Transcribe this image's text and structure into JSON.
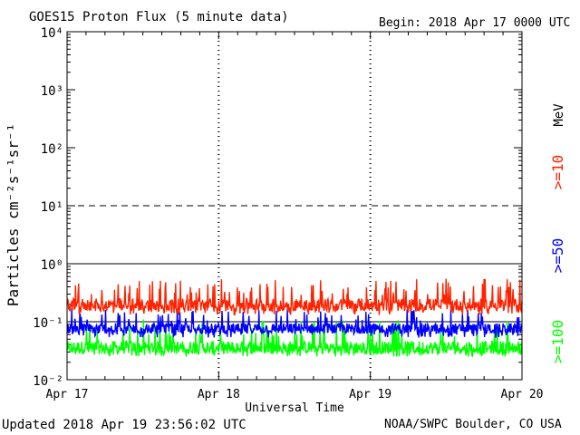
{
  "header": {
    "title": "GOES15 Proton Flux (5 minute data)",
    "begin": "Begin: 2018 Apr 17 0000 UTC"
  },
  "footer": {
    "updated": "Updated 2018 Apr 19 23:56:02 UTC",
    "source": "NOAA/SWPC Boulder, CO USA"
  },
  "chart_data": {
    "type": "line",
    "title": "GOES15 Proton Flux (5 minute data)",
    "xlabel": "Universal Time",
    "ylabel": "Particles cm⁻²s⁻¹sr⁻¹",
    "y_scale": "log",
    "ylim": [
      0.01,
      10000
    ],
    "y_ticks": [
      {
        "value": 0.01,
        "label": "10⁻²"
      },
      {
        "value": 0.1,
        "label": "10⁻¹"
      },
      {
        "value": 1,
        "label": "10⁰"
      },
      {
        "value": 10,
        "label": "10¹"
      },
      {
        "value": 100,
        "label": "10²"
      },
      {
        "value": 1000,
        "label": "10³"
      },
      {
        "value": 10000,
        "label": "10⁴"
      }
    ],
    "x_ticks": [
      "Apr 17",
      "Apr 18",
      "Apr 19",
      "Apr 20"
    ],
    "xlim": [
      "2018-04-17",
      "2018-04-20"
    ],
    "threshold_lines": [
      {
        "value": 10,
        "style": "dashed"
      },
      {
        "value": 1,
        "style": "solid"
      },
      {
        "value": 0.1,
        "style": "solid"
      }
    ],
    "energy_unit": "MeV",
    "series": [
      {
        "name": ">=10",
        "color": "#ff2200",
        "min": 0.13,
        "max": 0.55,
        "typical": 0.19
      },
      {
        "name": ">=50",
        "color": "#0000ff",
        "min": 0.052,
        "max": 0.17,
        "typical": 0.075
      },
      {
        "name": ">=100",
        "color": "#00ff00",
        "min": 0.025,
        "max": 0.11,
        "typical": 0.035
      }
    ]
  }
}
